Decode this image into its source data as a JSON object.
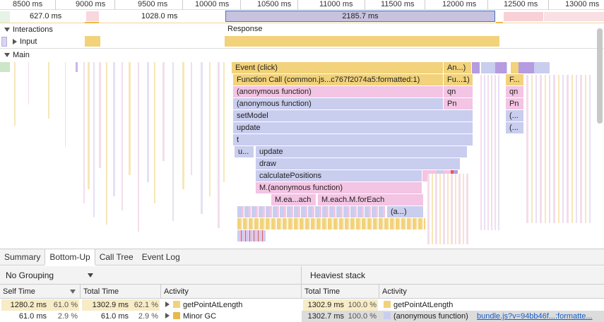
{
  "ruler": {
    "ticks": [
      "8500 ms",
      "9000 ms",
      "9500 ms",
      "10000 ms",
      "10500 ms",
      "11000 ms",
      "11500 ms",
      "12000 ms",
      "12500 ms",
      "13000 ms"
    ]
  },
  "frames": {
    "f1": "627.0 ms",
    "f2": "1028.0 ms",
    "f3": "2185.7 ms"
  },
  "tracks": {
    "interactions": "Interactions",
    "response": "Response",
    "input": "Input",
    "main": "Main"
  },
  "flame": {
    "event_click": "Event (click)",
    "event_an": "An...)",
    "function_call": "Function Call (common.js...c767f2074a5:formatted:1)",
    "fu1": "Fu...1)",
    "f_dots": "F...",
    "anon1": "(anonymous function)",
    "qn1": "qn",
    "qn2": "qn",
    "anon2": "(anonymous function)",
    "pn1": "Pn",
    "pn2": "Pn",
    "setmodel": "setModel",
    "paren1": "(...",
    "update": "update",
    "paren2": "(...",
    "t": "t",
    "u_dots": "u...",
    "update2": "update",
    "draw": "draw",
    "calc": "calculatePositions",
    "m_anon": "M.(anonymous function)",
    "m_each_ach": "M.ea...ach",
    "m_each_foreach": "M.each.M.forEach",
    "anon_dots": "(a...)"
  },
  "tabs": [
    "Summary",
    "Bottom-Up",
    "Call Tree",
    "Event Log"
  ],
  "active_tab": "Bottom-Up",
  "grouping": "No Grouping",
  "heaviest": "Heaviest stack",
  "left_table": {
    "headers": {
      "self": "Self Time",
      "total": "Total Time",
      "activity": "Activity"
    },
    "rows": [
      {
        "self": "1280.2 ms",
        "self_pct": "61.0 %",
        "total": "1302.9 ms",
        "total_pct": "62.1 %",
        "activity": "getPointAtLength",
        "self_fill": 0.61,
        "total_fill": 0.621
      },
      {
        "self": "61.0 ms",
        "self_pct": "2.9 %",
        "total": "61.0 ms",
        "total_pct": "2.9 %",
        "activity": "Minor GC",
        "self_fill": 0.029,
        "total_fill": 0.029
      }
    ]
  },
  "right_table": {
    "headers": {
      "total": "Total Time",
      "activity": "Activity"
    },
    "rows": [
      {
        "total": "1302.9 ms",
        "total_pct": "100.0 %",
        "activity": "getPointAtLength",
        "link": ""
      },
      {
        "total": "1302.7 ms",
        "total_pct": "100.0 %",
        "activity": "(anonymous function)",
        "link": "bundle.js?v=94bb46f...:formatte..."
      }
    ]
  },
  "colors": {
    "scripting": "#f2d27a",
    "pink": "#f3c4e3",
    "lavender": "#c9cdee",
    "purple": "#b59be0",
    "gc": "#e8b94a"
  }
}
